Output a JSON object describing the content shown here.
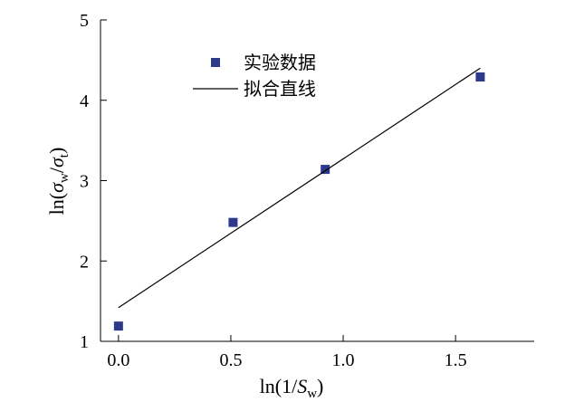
{
  "chart_data": {
    "type": "scatter",
    "xlabel": "ln(1/Sw)",
    "ylabel": "ln(σw/σt)",
    "xlim": [
      -0.08,
      1.85
    ],
    "ylim": [
      1,
      5
    ],
    "xticks": [
      0.0,
      0.5,
      1.0,
      1.5
    ],
    "xtick_labels": [
      "0.0",
      "0.5",
      "1.0",
      "1.5"
    ],
    "yticks": [
      1,
      2,
      3,
      4,
      5
    ],
    "ytick_labels": [
      "1",
      "2",
      "3",
      "4",
      "5"
    ],
    "grid": false,
    "legend_position": "top-left",
    "series": [
      {
        "name": "实验数据",
        "kind": "scatter",
        "marker": "square",
        "color": "#2d3a8c",
        "x": [
          0.0,
          0.51,
          0.92,
          1.61
        ],
        "y": [
          1.19,
          2.48,
          3.14,
          4.29
        ]
      },
      {
        "name": "拟合直线",
        "kind": "line",
        "color": "#000000",
        "x": [
          0.0,
          1.61
        ],
        "y": [
          1.42,
          4.4
        ]
      }
    ]
  }
}
